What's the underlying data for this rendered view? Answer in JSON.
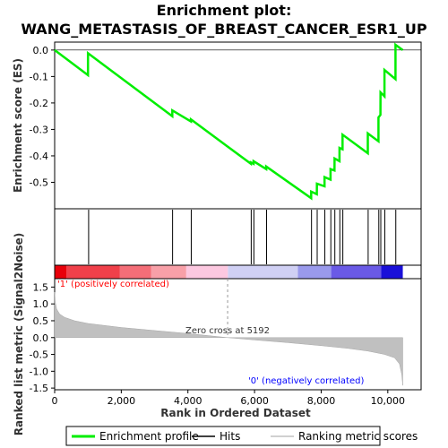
{
  "chart_data": {
    "type": "line",
    "title_line1": "Enrichment plot:",
    "title_line2": "WANG_METASTASIS_OF_BREAST_CANCER_ESR1_UP",
    "es_panel": {
      "ylabel": "Enrichment score (ES)",
      "ylim": [
        -0.6,
        0.03
      ],
      "yticks": [
        "0.0",
        "-0.1",
        "-0.2",
        "-0.3",
        "-0.4",
        "-0.5"
      ],
      "ytick_values": [
        0.0,
        -0.1,
        -0.2,
        -0.3,
        -0.4,
        -0.5
      ],
      "series": [
        {
          "name": "Enrichment profile",
          "color": "#00ee00",
          "x": [
            0,
            1000,
            1001,
            3530,
            3531,
            4090,
            4091,
            5890,
            5891,
            5970,
            5971,
            6350,
            6351,
            7700,
            7701,
            7870,
            7871,
            8100,
            8101,
            8280,
            8281,
            8400,
            8401,
            8550,
            8551,
            8640,
            8641,
            9400,
            9401,
            9720,
            9721,
            9780,
            9781,
            9900,
            9901,
            10230,
            10231,
            10450
          ],
          "y": [
            0.0,
            -0.095,
            -0.012,
            -0.25,
            -0.228,
            -0.27,
            -0.262,
            -0.43,
            -0.425,
            -0.43,
            -0.42,
            -0.45,
            -0.44,
            -0.56,
            -0.535,
            -0.545,
            -0.505,
            -0.515,
            -0.48,
            -0.49,
            -0.45,
            -0.455,
            -0.41,
            -0.42,
            -0.37,
            -0.375,
            -0.32,
            -0.39,
            -0.315,
            -0.345,
            -0.255,
            -0.245,
            -0.16,
            -0.175,
            -0.075,
            -0.11,
            0.02,
            0.0
          ]
        }
      ]
    },
    "hits": [
      1020,
      3540,
      4100,
      5900,
      5980,
      6360,
      7710,
      7880,
      8110,
      8290,
      8410,
      8560,
      8650,
      9410,
      9730,
      9790,
      9910,
      10240
    ],
    "rank_panel": {
      "ylabel": "Ranked list metric (Signal2Noise)",
      "xlabel": "Rank in Ordered Dataset",
      "ylim": [
        -1.55,
        1.75
      ],
      "yticks": [
        "1.5",
        "1.0",
        "0.5",
        "0.0",
        "-0.5",
        "-1.0",
        "-1.5"
      ],
      "ytick_values": [
        1.5,
        1.0,
        0.5,
        0.0,
        -0.5,
        -1.0,
        -1.5
      ],
      "xlim": [
        0,
        11000
      ],
      "xticks": [
        "0",
        "2,000",
        "4,000",
        "6,000",
        "8,000",
        "10,000"
      ],
      "xtick_values": [
        0,
        2000,
        4000,
        6000,
        8000,
        10000
      ],
      "profile": {
        "x": [
          0,
          20,
          60,
          150,
          300,
          600,
          1000,
          2000,
          3000,
          4000,
          5192,
          6000,
          7000,
          8000,
          8800,
          9400,
          9900,
          10200,
          10350,
          10420,
          10450
        ],
        "y": [
          1.35,
          1.05,
          0.85,
          0.7,
          0.6,
          0.5,
          0.42,
          0.3,
          0.21,
          0.12,
          0.0,
          -0.07,
          -0.15,
          -0.24,
          -0.32,
          -0.4,
          -0.5,
          -0.6,
          -0.78,
          -1.1,
          -1.42
        ]
      },
      "zero_cross_label": "Zero cross at 5192",
      "zero_cross": 5192,
      "positive_label": "'1' (positively correlated)",
      "negative_label": "'0' (negatively correlated)",
      "positive_color": "#ff0000",
      "negative_color": "#0000ff"
    },
    "color_bar": {
      "segments": [
        {
          "x0": 0,
          "x1": 350,
          "color": "#e8000a"
        },
        {
          "x0": 350,
          "x1": 1950,
          "color": "#f0404a"
        },
        {
          "x0": 1950,
          "x1": 2900,
          "color": "#f46e78"
        },
        {
          "x0": 2900,
          "x1": 3950,
          "color": "#f8a0a8"
        },
        {
          "x0": 3950,
          "x1": 5200,
          "color": "#fcc8e0"
        },
        {
          "x0": 5200,
          "x1": 7300,
          "color": "#d0d0f4"
        },
        {
          "x0": 7300,
          "x1": 8300,
          "color": "#9a9aec"
        },
        {
          "x0": 8300,
          "x1": 9800,
          "color": "#6a5ae6"
        },
        {
          "x0": 9800,
          "x1": 10450,
          "color": "#1a10d8"
        }
      ]
    },
    "legend": {
      "items": [
        {
          "label": "Enrichment profile",
          "color": "#00ee00"
        },
        {
          "label": "Hits",
          "color": "#000000"
        },
        {
          "label": "Ranking metric scores",
          "color": "#c0c0c0"
        }
      ]
    }
  }
}
